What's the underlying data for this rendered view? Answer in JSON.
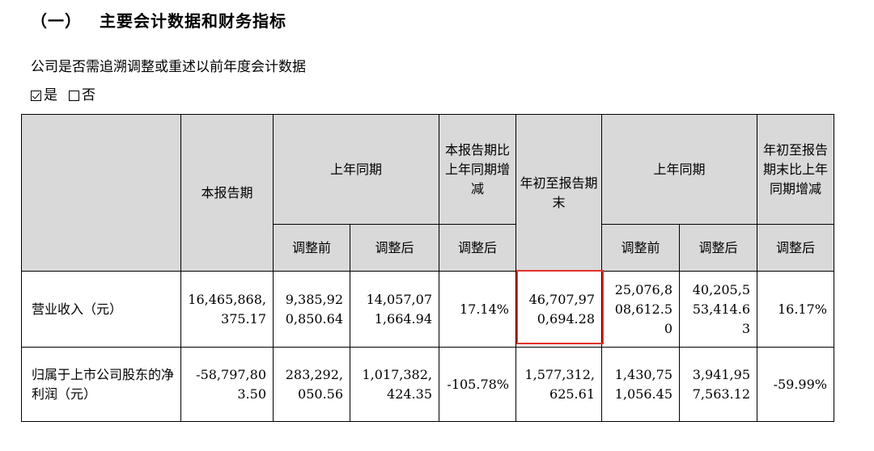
{
  "section": {
    "number": "（一）",
    "title": "主要会计数据和财务指标"
  },
  "question": "公司是否需追溯调整或重述以前年度会计数据",
  "options": [
    {
      "label": "是",
      "checked": true
    },
    {
      "label": "否",
      "checked": false
    }
  ],
  "table": {
    "headers": {
      "current_period": "本报告期",
      "last_year_same_period": "上年同期",
      "period_change": "本报告期比上年同期增减",
      "ytd": "年初至报告期末",
      "last_year_same_period_ytd": "上年同期",
      "ytd_change": "年初至报告期末比上年同期增减",
      "before_adjust": "调整前",
      "after_adjust": "调整后",
      "after_adjust_change": "调整后",
      "before_adjust_ytd": "调整前",
      "after_adjust_ytd": "调整后",
      "after_adjust_ytd_change": "调整后"
    },
    "rows": [
      {
        "label": "营业收入（元）",
        "current": "16,465,868,375.17",
        "prior_before": "9,385,920,850.64",
        "prior_after": "14,057,071,664.94",
        "change": "17.14%",
        "ytd": "46,707,970,694.28",
        "prior_ytd_before": "25,076,808,612.50",
        "prior_ytd_after": "40,205,553,414.63",
        "ytd_change": "16.17%"
      },
      {
        "label": "归属于上市公司股东的净利润（元）",
        "current": "-58,797,803.50",
        "prior_before": "283,292,050.56",
        "prior_after": "1,017,382,424.35",
        "change": "-105.78%",
        "ytd": "1,577,312,625.61",
        "prior_ytd_before": "1,430,751,056.45",
        "prior_ytd_after": "3,941,957,563.12",
        "ytd_change": "-59.99%"
      }
    ]
  }
}
